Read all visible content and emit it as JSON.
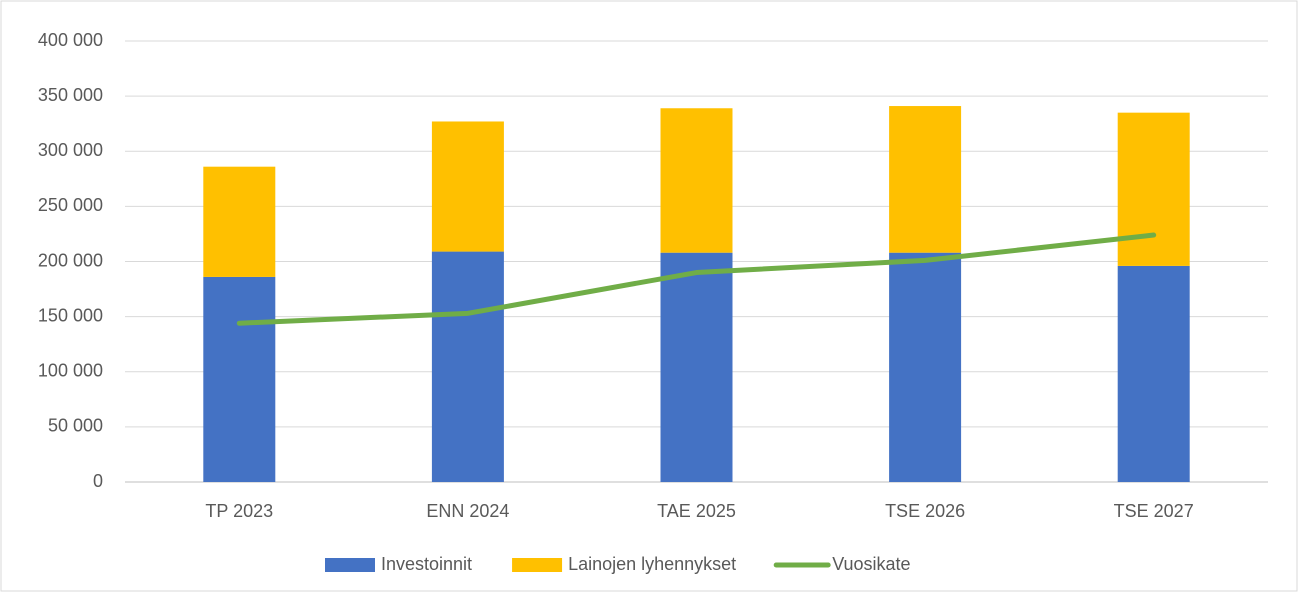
{
  "chart_data": {
    "type": "bar",
    "categories": [
      "TP 2023",
      "ENN 2024",
      "TAE 2025",
      "TSE 2026",
      "TSE 2027"
    ],
    "series": [
      {
        "name": "Investoinnit",
        "color": "#4472c4",
        "type": "bar",
        "values": [
          186000,
          209000,
          208000,
          208000,
          196000
        ]
      },
      {
        "name": "Lainojen lyhennykset",
        "color": "#ffc000",
        "type": "bar",
        "values": [
          100000,
          118000,
          131000,
          133000,
          139000
        ]
      },
      {
        "name": "Vuosikate",
        "color": "#70ad47",
        "type": "line",
        "values": [
          144000,
          153000,
          190000,
          201000,
          224000
        ]
      }
    ],
    "stacked": true,
    "ylim": [
      0,
      400000
    ],
    "yticks": [
      0,
      {
        "value": 50000,
        "label": "50 000"
      },
      {
        "value": 100000,
        "label": "100 000"
      },
      {
        "value": 150000,
        "label": "150 000"
      },
      {
        "value": 200000,
        "label": "200 000"
      },
      {
        "value": 250000,
        "label": "250 000"
      },
      {
        "value": 300000,
        "label": "300 000"
      },
      {
        "value": 350000,
        "label": "350 000"
      },
      {
        "value": 400000,
        "label": "400 000"
      }
    ],
    "grid": true,
    "legend": "bottom"
  }
}
